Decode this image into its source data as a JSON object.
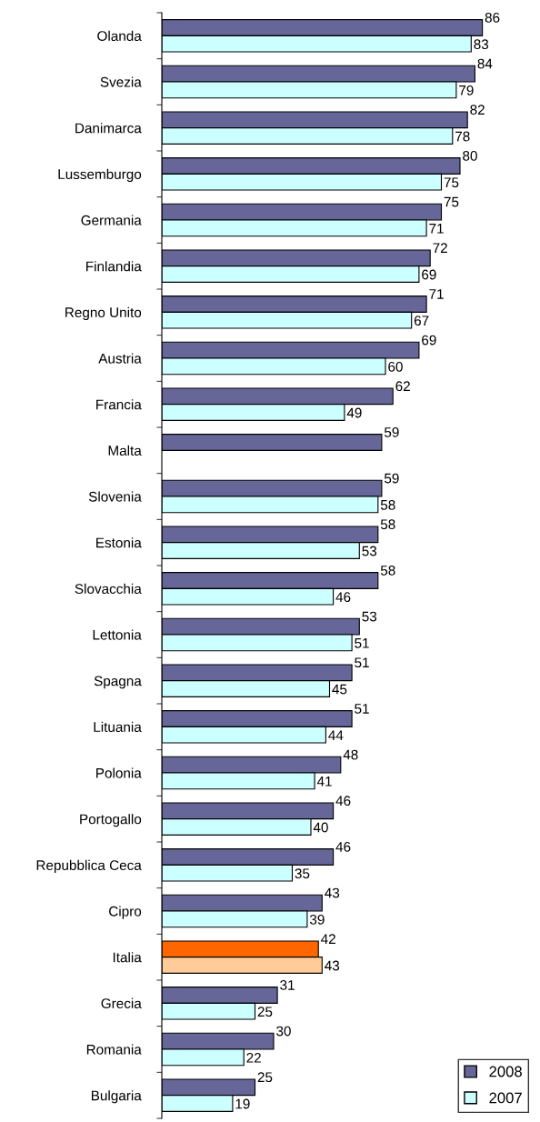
{
  "chart_data": {
    "type": "bar",
    "orientation": "horizontal",
    "categories": [
      "Olanda",
      "Svezia",
      "Danimarca",
      "Lussemburgo",
      "Germania",
      "Finlandia",
      "Regno Unito",
      "Austria",
      "Francia",
      "Malta",
      "Slovenia",
      "Estonia",
      "Slovacchia",
      "Lettonia",
      "Spagna",
      "Lituania",
      "Polonia",
      "Portogallo",
      "Repubblica Ceca",
      "Cipro",
      "Italia",
      "Grecia",
      "Romania",
      "Bulgaria"
    ],
    "series": [
      {
        "name": "2008",
        "color": "#666699",
        "colors": [
          "#666699",
          "#666699",
          "#666699",
          "#666699",
          "#666699",
          "#666699",
          "#666699",
          "#666699",
          "#666699",
          "#666699",
          "#666699",
          "#666699",
          "#666699",
          "#666699",
          "#666699",
          "#666699",
          "#666699",
          "#666699",
          "#666699",
          "#666699",
          "#ff6600",
          "#666699",
          "#666699",
          "#666699"
        ],
        "values": [
          86,
          84,
          82,
          80,
          75,
          72,
          71,
          69,
          62,
          59,
          59,
          58,
          58,
          53,
          51,
          51,
          48,
          46,
          46,
          43,
          42,
          31,
          30,
          25
        ]
      },
      {
        "name": "2007",
        "color": "#ccffff",
        "colors": [
          "#ccffff",
          "#ccffff",
          "#ccffff",
          "#ccffff",
          "#ccffff",
          "#ccffff",
          "#ccffff",
          "#ccffff",
          "#ccffff",
          "#ccffff",
          "#ccffff",
          "#ccffff",
          "#ccffff",
          "#ccffff",
          "#ccffff",
          "#ccffff",
          "#ccffff",
          "#ccffff",
          "#ccffff",
          "#ccffff",
          "#ffcc99",
          "#ccffff",
          "#ccffff",
          "#ccffff"
        ],
        "values": [
          83,
          79,
          78,
          75,
          71,
          69,
          67,
          60,
          49,
          null,
          58,
          53,
          46,
          51,
          45,
          44,
          41,
          40,
          35,
          39,
          43,
          25,
          22,
          19
        ]
      }
    ],
    "tick_labels": "y",
    "data_labels": true,
    "legend": "bottom right",
    "grid": false
  }
}
